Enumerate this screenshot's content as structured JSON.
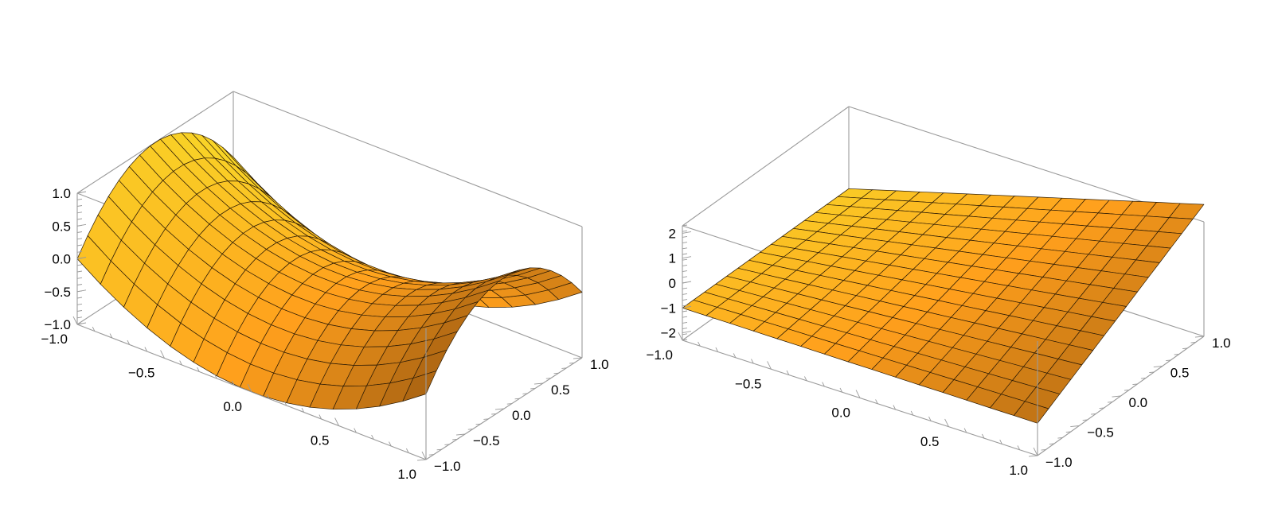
{
  "chart_data": [
    {
      "type": "surface3d",
      "x": [
        -1,
        1
      ],
      "y": [
        -1,
        1
      ],
      "z": "x^2 - y^2",
      "zlim": [
        -1,
        1
      ],
      "mesh": 15,
      "colors": {
        "low": "#f6ec2c",
        "mid": "#ff9f1c",
        "high": "#8a4d0e",
        "mesh": "#2a1a05",
        "box": "#9a9a9a"
      },
      "tick_labels": {
        "z": [
          "1.0",
          "0.5",
          "0.0",
          "−0.5",
          "−1.0"
        ],
        "x": [
          "−1.0",
          "−0.5",
          "0.0",
          "0.5",
          "1.0"
        ],
        "y": [
          "−1.0",
          "−0.5",
          "0.0",
          "0.5",
          "1.0"
        ]
      }
    },
    {
      "type": "surface3d",
      "x": [
        -1,
        1
      ],
      "y": [
        -1,
        1
      ],
      "z": "x y + x + y",
      "zlim": [
        -2.3,
        2.3
      ],
      "mesh": 15,
      "colors": {
        "low": "#f6ec2c",
        "mid": "#ff9f1c",
        "high": "#8a4d0e",
        "mesh": "#2a1a05",
        "box": "#9a9a9a"
      },
      "tick_labels": {
        "z": [
          "2",
          "1",
          "0",
          "−1",
          "−2"
        ],
        "x": [
          "−1.0",
          "−0.5",
          "0.0",
          "0.5",
          "1.0"
        ],
        "y": [
          "−1.0",
          "−0.5",
          "0.0",
          "0.5",
          "1.0"
        ]
      }
    }
  ]
}
